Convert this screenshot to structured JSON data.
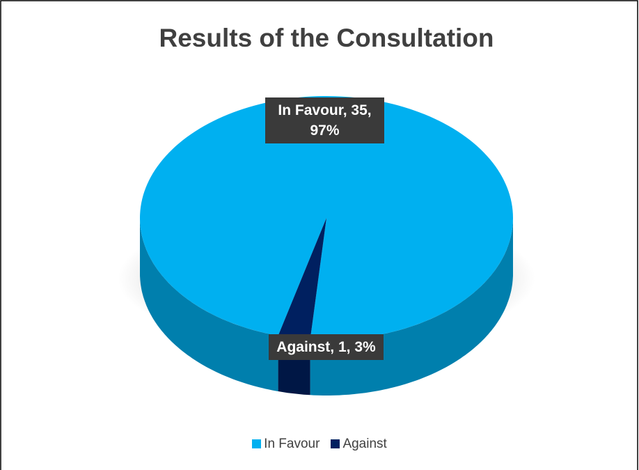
{
  "chart_data": {
    "type": "pie",
    "title": "Results of the Consultation",
    "categories": [
      "In Favour",
      "Against"
    ],
    "values": [
      35,
      1
    ],
    "value_labels": [
      "In Favour, 35, 97%",
      "Against, 1, 3%"
    ],
    "colors": [
      "#00b0f0",
      "#002060"
    ],
    "legend": "bottom"
  }
}
